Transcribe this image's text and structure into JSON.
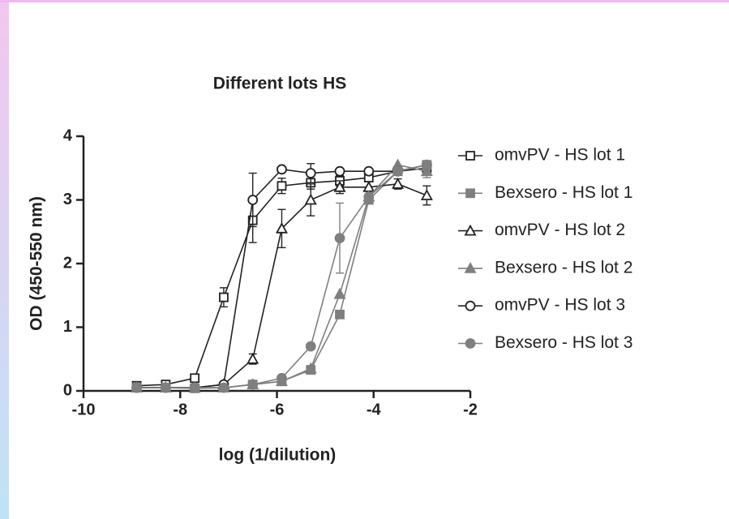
{
  "chart_data": {
    "type": "line",
    "title": "Different lots HS",
    "x_label": "log (1/dilution)",
    "y_label": "OD (450-550 nm)",
    "xlim": [
      -10,
      -2
    ],
    "xticks": [
      -10,
      -8,
      -6,
      -4,
      -2
    ],
    "ylim": [
      0,
      4
    ],
    "yticks": [
      0,
      1,
      2,
      3,
      4
    ],
    "x": [
      -8.9,
      -8.3,
      -7.7,
      -7.1,
      -6.5,
      -5.9,
      -5.3,
      -4.7,
      -4.1,
      -3.5,
      -2.9
    ],
    "series": [
      {
        "name": "omvPV - HS lot 1",
        "color": "#222222",
        "marker": "square",
        "filled": false,
        "values": [
          0.08,
          0.1,
          0.2,
          1.47,
          2.68,
          3.22,
          3.27,
          3.3,
          3.35,
          3.45,
          3.5
        ],
        "errors": [
          null,
          null,
          0.05,
          0.15,
          0.35,
          0.12,
          0.1,
          0.08,
          null,
          null,
          null
        ]
      },
      {
        "name": "Bexsero - HS lot 1",
        "color": "#7f7f7f",
        "marker": "square",
        "filled": true,
        "values": [
          0.05,
          0.05,
          0.04,
          0.05,
          0.1,
          0.15,
          0.33,
          1.2,
          3.0,
          3.45,
          3.55
        ],
        "errors": [
          null,
          null,
          null,
          null,
          null,
          null,
          null,
          null,
          null,
          null,
          null
        ]
      },
      {
        "name": "omvPV - HS lot 2",
        "color": "#222222",
        "marker": "triangle",
        "filled": false,
        "values": [
          0.05,
          0.05,
          0.05,
          0.1,
          0.5,
          2.55,
          3.0,
          3.2,
          3.2,
          3.25,
          3.07
        ],
        "errors": [
          null,
          null,
          null,
          null,
          0.08,
          0.3,
          0.25,
          0.1,
          null,
          0.08,
          0.15
        ]
      },
      {
        "name": "Bexsero - HS lot 2",
        "color": "#7f7f7f",
        "marker": "triangle",
        "filled": true,
        "values": [
          0.05,
          0.05,
          0.05,
          0.05,
          0.1,
          0.15,
          0.35,
          1.52,
          3.05,
          3.55,
          3.45
        ],
        "errors": [
          null,
          null,
          null,
          null,
          null,
          null,
          null,
          null,
          null,
          null,
          0.1
        ]
      },
      {
        "name": "omvPV - HS lot 3",
        "color": "#222222",
        "marker": "circle",
        "filled": false,
        "values": [
          0.05,
          0.05,
          0.05,
          0.1,
          3.0,
          3.48,
          3.42,
          3.45,
          3.45,
          3.45,
          3.55
        ],
        "errors": [
          null,
          null,
          null,
          null,
          0.42,
          null,
          0.15,
          null,
          null,
          null,
          null
        ]
      },
      {
        "name": "Bexsero - HS lot 3",
        "color": "#7f7f7f",
        "marker": "circle",
        "filled": true,
        "values": [
          0.05,
          0.05,
          0.05,
          0.05,
          0.1,
          0.2,
          0.7,
          2.4,
          3.05,
          3.45,
          3.55
        ],
        "errors": [
          null,
          null,
          null,
          null,
          null,
          null,
          null,
          0.55,
          null,
          null,
          null
        ]
      }
    ]
  }
}
